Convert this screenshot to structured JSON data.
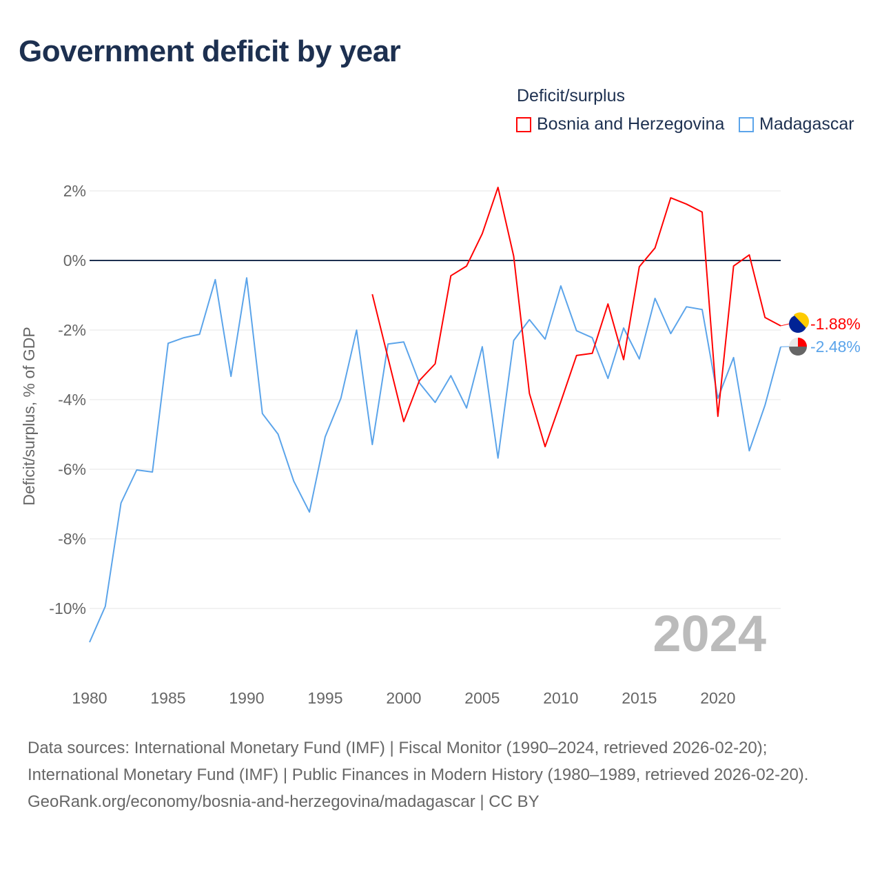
{
  "title": "Government deficit by year",
  "legend": {
    "title": "Deficit/surplus",
    "items": [
      {
        "label": "Bosnia and Herzegovina",
        "color": "#ff0000"
      },
      {
        "label": "Madagascar",
        "color": "#5ba4ea"
      }
    ]
  },
  "footer": {
    "sources": "Data sources: International Monetary Fund (IMF) | Fiscal Monitor (1990–2024, retrieved 2026-02-20); International Monetary Fund (IMF) | Public Finances in Modern History (1980–1989, retrieved 2026-02-20).",
    "credit": "GeoRank.org/economy/bosnia-and-herzegovina/madagascar | CC BY"
  },
  "chart_data": {
    "type": "line",
    "title": "Government deficit by year",
    "ylabel": "Deficit/surplus, % of GDP",
    "xlabel": "",
    "year_label": "2024",
    "xlim": [
      1980,
      2024
    ],
    "ylim": [
      -11,
      2
    ],
    "x_ticks": [
      "1980",
      "1985",
      "1990",
      "1995",
      "2000",
      "2005",
      "2010",
      "2015",
      "2020"
    ],
    "y_ticks": [
      {
        "v": 2,
        "label": "2%"
      },
      {
        "v": 0,
        "label": "0%"
      },
      {
        "v": -2,
        "label": "-2%"
      },
      {
        "v": -4,
        "label": "-4%"
      },
      {
        "v": -6,
        "label": "-6%"
      },
      {
        "v": -8,
        "label": "-8%"
      },
      {
        "v": -10,
        "label": "-10%"
      }
    ],
    "series": [
      {
        "name": "Bosnia and Herzegovina",
        "color": "#ff0000",
        "end_label": "-1.88%",
        "start": 1998,
        "values": [
          -0.97,
          -2.8,
          -4.63,
          -3.45,
          -2.97,
          -0.44,
          -0.16,
          0.77,
          2.1,
          0.12,
          -3.82,
          -5.35,
          -4.06,
          -2.73,
          -2.67,
          -1.25,
          -2.85,
          -0.18,
          0.36,
          1.8,
          1.62,
          1.39,
          -4.48,
          -0.16,
          0.16,
          -1.64,
          -1.88
        ]
      },
      {
        "name": "Madagascar",
        "color": "#5ba4ea",
        "end_label": "-2.48%",
        "start": 1980,
        "values": [
          -10.97,
          -9.94,
          -6.97,
          -6.02,
          -6.08,
          -2.38,
          -2.22,
          -2.12,
          -0.55,
          -3.33,
          -0.5,
          -4.4,
          -4.99,
          -6.34,
          -7.23,
          -5.07,
          -3.96,
          -2.0,
          -5.29,
          -2.4,
          -2.34,
          -3.52,
          -4.08,
          -3.31,
          -4.24,
          -2.48,
          -5.68,
          -2.3,
          -1.7,
          -2.26,
          -0.73,
          -2.02,
          -2.22,
          -3.39,
          -1.94,
          -2.83,
          -1.09,
          -2.1,
          -1.33,
          -1.41,
          -3.96,
          -2.79,
          -5.47,
          -4.16,
          -2.48
        ]
      }
    ]
  }
}
